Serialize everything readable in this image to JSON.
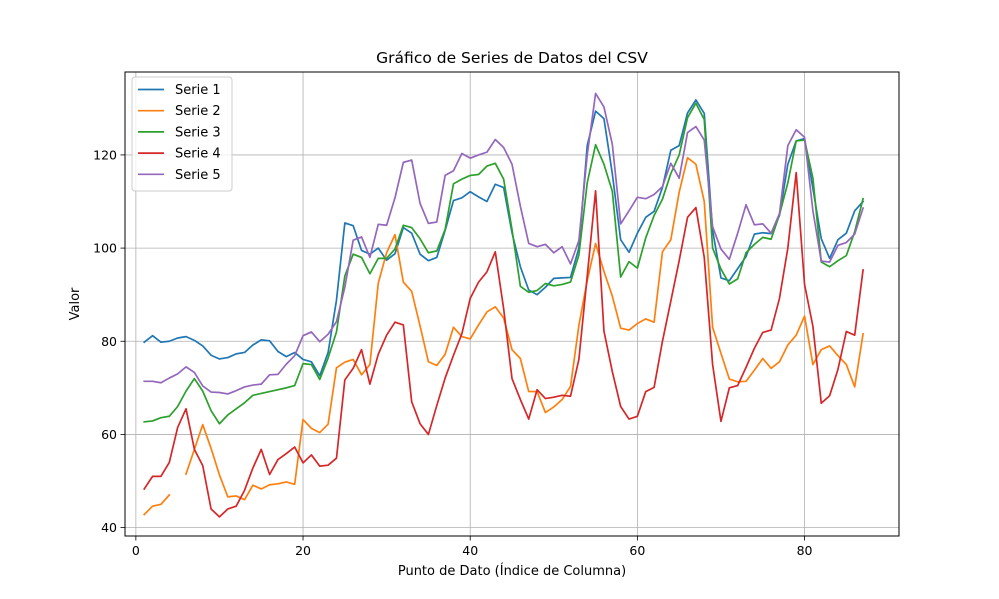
{
  "chart_data": {
    "type": "line",
    "title": "Gráfico de Series de Datos del CSV",
    "xlabel": "Punto de Dato (Índice de Columna)",
    "ylabel": "Valor",
    "xlim": [
      -1.3,
      91.3
    ],
    "ylim": [
      38.2,
      137.8
    ],
    "xticks": [
      0,
      20,
      40,
      60,
      80
    ],
    "yticks": [
      40,
      60,
      80,
      100,
      120
    ],
    "grid": true,
    "legend_position": "top-left",
    "x": [
      1,
      2,
      3,
      4,
      5,
      6,
      7,
      8,
      9,
      10,
      11,
      12,
      13,
      14,
      15,
      16,
      17,
      18,
      19,
      20,
      21,
      22,
      23,
      24,
      25,
      26,
      27,
      28,
      29,
      30,
      31,
      32,
      33,
      34,
      35,
      36,
      37,
      38,
      39,
      40,
      41,
      42,
      43,
      44,
      45,
      46,
      47,
      48,
      49,
      50,
      51,
      52,
      53,
      54,
      55,
      56,
      57,
      58,
      59,
      60,
      61,
      62,
      63,
      64,
      65,
      66,
      67,
      68,
      69,
      70,
      71,
      72,
      73,
      74,
      75,
      76,
      77,
      78,
      79,
      80,
      81,
      82,
      83,
      84,
      85,
      86,
      87
    ],
    "series": [
      {
        "name": "Serie 1",
        "color": "#1f77b4",
        "values": [
          79.8,
          81.2,
          79.8,
          80.0,
          80.7,
          81.0,
          80.2,
          79.0,
          77.0,
          76.2,
          76.5,
          77.3,
          77.6,
          79.2,
          80.3,
          80.1,
          77.8,
          76.7,
          77.6,
          76.1,
          75.6,
          72.6,
          77.6,
          88.8,
          105.4,
          104.8,
          99.5,
          98.7,
          100.0,
          97.4,
          98.8,
          104.4,
          103.2,
          98.7,
          97.3,
          98.0,
          103.8,
          110.2,
          110.8,
          112.1,
          111.0,
          110.0,
          113.7,
          113.0,
          103.3,
          96.0,
          91.0,
          90.0,
          91.6,
          93.5,
          93.6,
          93.7,
          100.0,
          122.0,
          129.4,
          127.8,
          116.0,
          101.8,
          99.1,
          103.2,
          106.6,
          107.9,
          113.0,
          121.0,
          122.0,
          129.0,
          131.8,
          128.9,
          103.8,
          93.6,
          93.0,
          95.6,
          98.2,
          103.0,
          103.3,
          103.1,
          107.0,
          118.0,
          123.0,
          123.5,
          112.8,
          102.0,
          97.8,
          101.8,
          103.2,
          108.0,
          110.0
        ]
      },
      {
        "name": "Serie 2",
        "color": "#ff7f0e",
        "values": [
          42.8,
          44.6,
          45.0,
          47.0,
          null,
          51.5,
          56.8,
          62.1,
          57.0,
          51.3,
          46.6,
          46.8,
          46.0,
          49.1,
          48.3,
          49.2,
          49.4,
          49.8,
          49.3,
          63.2,
          61.3,
          60.4,
          62.2,
          74.3,
          75.5,
          76.1,
          72.8,
          75.0,
          92.5,
          99.0,
          102.9,
          92.7,
          90.7,
          83.3,
          75.6,
          74.8,
          77.2,
          83.0,
          81.0,
          80.5,
          83.5,
          86.3,
          87.4,
          85.0,
          78.2,
          76.3,
          69.2,
          69.2,
          64.7,
          65.9,
          67.5,
          70.3,
          83.4,
          93.0,
          101.0,
          95.0,
          89.7,
          82.8,
          82.4,
          83.8,
          84.8,
          84.1,
          99.2,
          101.8,
          112.0,
          119.4,
          118.0,
          110.0,
          83.0,
          77.4,
          71.9,
          71.3,
          71.4,
          73.8,
          76.3,
          74.2,
          75.6,
          79.2,
          81.3,
          85.4,
          75.0,
          78.2,
          79.0,
          76.9,
          75.0,
          70.2,
          81.6
        ]
      },
      {
        "name": "Serie 3",
        "color": "#2ca02c",
        "values": [
          62.7,
          62.9,
          63.6,
          63.9,
          66.0,
          69.3,
          72.0,
          69.3,
          65.1,
          62.3,
          64.2,
          65.5,
          66.8,
          68.4,
          68.8,
          69.2,
          69.6,
          70.0,
          70.5,
          75.2,
          75.0,
          71.8,
          76.4,
          82.0,
          94.0,
          98.7,
          98.0,
          94.5,
          97.8,
          97.8,
          99.8,
          104.9,
          104.4,
          102.0,
          99.0,
          99.4,
          104.0,
          113.8,
          114.8,
          115.6,
          115.8,
          117.6,
          118.2,
          114.8,
          104.0,
          91.8,
          90.5,
          90.9,
          92.4,
          91.9,
          92.2,
          92.7,
          98.5,
          114.0,
          122.2,
          118.0,
          112.2,
          93.8,
          97.1,
          95.7,
          102.2,
          107.0,
          110.5,
          116.0,
          120.0,
          128.0,
          131.1,
          127.6,
          100.0,
          95.5,
          92.3,
          93.4,
          99.0,
          100.8,
          102.3,
          101.9,
          107.2,
          114.0,
          123.0,
          123.2,
          115.0,
          97.0,
          96.0,
          97.3,
          98.4,
          103.5,
          110.6
        ]
      },
      {
        "name": "Serie 4",
        "color": "#d62728",
        "values": [
          48.3,
          51.0,
          51.0,
          54.0,
          61.5,
          65.5,
          56.8,
          53.3,
          44.0,
          42.3,
          44.0,
          44.6,
          48.0,
          52.8,
          56.8,
          51.4,
          54.6,
          55.9,
          57.3,
          53.9,
          55.6,
          53.2,
          53.4,
          54.9,
          71.7,
          74.2,
          78.2,
          70.8,
          77.2,
          81.3,
          84.1,
          83.5,
          67.0,
          62.3,
          60.0,
          66.2,
          72.1,
          77.0,
          81.6,
          89.2,
          92.7,
          94.9,
          99.2,
          87.0,
          72.0,
          67.5,
          63.3,
          69.6,
          67.7,
          68.0,
          68.4,
          68.2,
          76.1,
          94.0,
          112.3,
          82.2,
          73.5,
          66.0,
          63.3,
          63.9,
          69.2,
          70.1,
          80.0,
          88.6,
          97.3,
          106.6,
          108.7,
          98.0,
          75.0,
          62.8,
          70.0,
          70.5,
          74.4,
          78.5,
          81.9,
          82.4,
          89.2,
          100.0,
          116.2,
          92.2,
          83.2,
          66.7,
          68.3,
          74.0,
          82.1,
          81.3,
          95.3
        ]
      },
      {
        "name": "Serie 5",
        "color": "#9467bd",
        "values": [
          71.4,
          71.4,
          71.1,
          72.1,
          73.0,
          74.5,
          73.3,
          70.4,
          69.1,
          69.0,
          68.7,
          69.4,
          70.2,
          70.6,
          70.8,
          72.8,
          72.9,
          75.1,
          76.9,
          81.2,
          82.0,
          79.9,
          81.5,
          84.2,
          91.6,
          101.7,
          102.4,
          98.0,
          105.1,
          104.9,
          110.8,
          118.4,
          118.9,
          109.6,
          105.3,
          105.6,
          115.6,
          116.6,
          120.3,
          119.3,
          120.0,
          120.6,
          123.3,
          121.6,
          118.0,
          109.0,
          101.0,
          100.3,
          100.8,
          99.0,
          100.3,
          96.6,
          101.6,
          120.0,
          133.2,
          130.3,
          122.3,
          105.2,
          108.0,
          110.9,
          110.6,
          111.5,
          113.2,
          118.2,
          115.0,
          124.8,
          126.1,
          123.2,
          104.6,
          99.8,
          97.6,
          103.2,
          109.3,
          105.0,
          105.2,
          103.2,
          107.4,
          122.0,
          125.4,
          123.8,
          108.0,
          97.2,
          97.0,
          100.6,
          101.2,
          103.0,
          108.6
        ]
      }
    ]
  }
}
